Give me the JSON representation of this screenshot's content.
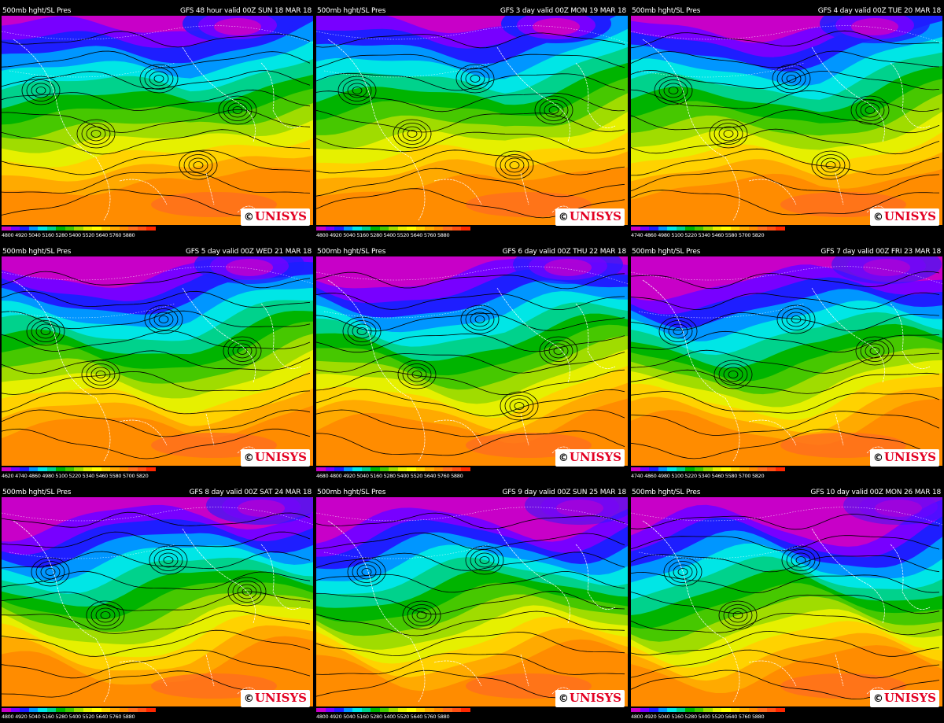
{
  "product_label": "500mb hght/SL Pres",
  "logo_text": "UNISYS",
  "logo_copyright": "©",
  "palette": [
    "#c800c8",
    "#7800ff",
    "#1e1eff",
    "#0096ff",
    "#00e6e6",
    "#00d28c",
    "#00b400",
    "#46c800",
    "#a0dc00",
    "#e6f000",
    "#ffff00",
    "#ffd200",
    "#ffaa00",
    "#ff8c00",
    "#ff6e1e",
    "#ff5014",
    "#ff2800"
  ],
  "panels": [
    {
      "title": "GFS 48 hour valid 00Z SUN 18 MAR 18",
      "scale": "4800 4920 5040 5160 5280 5400 5520 5640 5760 5880",
      "lows": 5,
      "depth": 0.9
    },
    {
      "title": "GFS 3 day valid 00Z MON 19 MAR 18",
      "scale": "4800 4920 5040 5160 5280 5400 5520 5640 5760 5880",
      "lows": 5,
      "depth": 1.0
    },
    {
      "title": "GFS 4 day valid 00Z TUE 20 MAR 18",
      "scale": "4740 4860 4980 5100 5220 5340 5460 5580 5700 5820",
      "lows": 5,
      "depth": 0.85
    },
    {
      "title": "GFS 5 day valid 00Z WED 21 MAR 18",
      "scale": "4620 4740 4860 4980 5100 5220 5340 5460 5580 5700 5820",
      "lows": 4,
      "depth": 0.75
    },
    {
      "title": "GFS 6 day valid 00Z THU 22 MAR 18",
      "scale": "4680 4800 4920 5040 5160 5280 5400 5520 5640 5760 5880",
      "lows": 5,
      "depth": 0.7
    },
    {
      "title": "GFS 7 day valid 00Z FRI 23 MAR 18",
      "scale": "4740 4860 4980 5100 5220 5340 5460 5580 5700 5820",
      "lows": 4,
      "depth": 0.55
    },
    {
      "title": "GFS 8 day valid 00Z SAT 24 MAR 18",
      "scale": "4800 4920 5040 5160 5280 5400 5520 5640 5760 5880",
      "lows": 4,
      "depth": 0.6
    },
    {
      "title": "GFS 9 day valid 00Z SUN 25 MAR 18",
      "scale": "4800 4920 5040 5160 5280 5400 5520 5640 5760 5880",
      "lows": 3,
      "depth": 0.5
    },
    {
      "title": "GFS 10 day valid 00Z MON 26 MAR 18",
      "scale": "4800 4920 5040 5160 5280 5400 5520 5640 5760 5880",
      "lows": 3,
      "depth": 0.45
    }
  ]
}
